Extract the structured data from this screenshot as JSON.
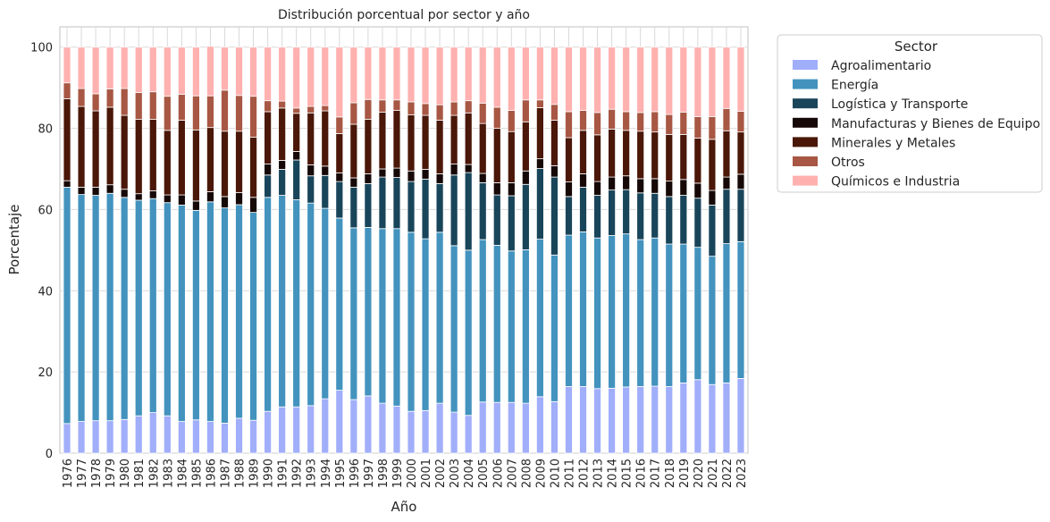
{
  "chart_data": {
    "type": "bar",
    "stacked": true,
    "title": "Distribución porcentual por sector y año",
    "xlabel": "Año",
    "ylabel": "Porcentaje",
    "ylim": [
      0,
      105
    ],
    "yticks": [
      0,
      20,
      40,
      60,
      80,
      100
    ],
    "grid": true,
    "legend_title": "Sector",
    "legend_position": "outside-top-right",
    "categories": [
      "1976",
      "1977",
      "1978",
      "1979",
      "1980",
      "1981",
      "1982",
      "1983",
      "1984",
      "1985",
      "1986",
      "1987",
      "1988",
      "1989",
      "1990",
      "1991",
      "1992",
      "1993",
      "1994",
      "1995",
      "1996",
      "1997",
      "1998",
      "1999",
      "2000",
      "2001",
      "2002",
      "2003",
      "2004",
      "2005",
      "2006",
      "2007",
      "2008",
      "2009",
      "2010",
      "2011",
      "2012",
      "2013",
      "2014",
      "2015",
      "2016",
      "2017",
      "2018",
      "2019",
      "2020",
      "2021",
      "2022",
      "2023"
    ],
    "series": [
      {
        "name": "Agroalimentario",
        "color": "#a1aefa",
        "values": [
          7.3,
          7.8,
          8.0,
          8.0,
          8.3,
          9.2,
          10.0,
          9.2,
          7.8,
          8.2,
          7.8,
          7.4,
          8.6,
          8.1,
          10.3,
          11.4,
          11.4,
          11.7,
          13.4,
          15.5,
          13.2,
          14.1,
          12.3,
          11.6,
          10.3,
          10.5,
          12.3,
          10.1,
          9.3,
          12.6,
          12.5,
          12.5,
          12.3,
          13.9,
          12.7,
          16.4,
          16.4,
          15.9,
          16.0,
          16.3,
          16.4,
          16.5,
          16.4,
          17.3,
          18.1,
          16.9,
          17.3,
          18.4
        ]
      },
      {
        "name": "Energía",
        "color": "#4393be",
        "values": [
          58.2,
          55.9,
          55.5,
          56.0,
          54.7,
          53.1,
          52.7,
          52.5,
          53.3,
          51.6,
          54.1,
          53.0,
          52.6,
          51.2,
          52.7,
          52.1,
          51.0,
          49.9,
          46.9,
          42.4,
          42.3,
          41.5,
          43.0,
          43.7,
          44.1,
          42.3,
          42.1,
          41.0,
          40.7,
          40.0,
          38.7,
          37.3,
          37.8,
          38.8,
          36.1,
          37.3,
          38.1,
          37.1,
          37.6,
          37.7,
          36.2,
          36.5,
          35.1,
          34.2,
          32.6,
          31.6,
          34.3,
          33.7
        ]
      },
      {
        "name": "Logística y Transporte",
        "color": "#19455a",
        "values": [
          0,
          0,
          0,
          0,
          0,
          0,
          0,
          0,
          0,
          0,
          0,
          0,
          0,
          0,
          5.5,
          6.4,
          9.8,
          6.7,
          8.1,
          9.0,
          10.0,
          10.8,
          12.7,
          12.6,
          12.5,
          14.7,
          12.0,
          17.4,
          19.1,
          14.0,
          12.4,
          13.6,
          16.1,
          17.4,
          19.2,
          9.5,
          11.0,
          10.5,
          11.2,
          10.9,
          11.5,
          11.0,
          11.7,
          12.0,
          12.1,
          12.6,
          13.4,
          12.9
        ]
      },
      {
        "name": "Manufacturas y Bienes de Equipo",
        "color": "#160807",
        "values": [
          1.6,
          1.8,
          2.0,
          2.1,
          2.0,
          1.6,
          1.9,
          1.9,
          2.5,
          2.3,
          2.5,
          2.8,
          3.0,
          3.7,
          2.7,
          2.2,
          2.1,
          2.7,
          2.3,
          2.1,
          2.3,
          2.4,
          2.0,
          2.3,
          2.6,
          2.4,
          2.4,
          2.7,
          2.0,
          2.3,
          3.0,
          3.2,
          3.3,
          2.4,
          2.8,
          3.6,
          3.3,
          3.4,
          3.2,
          3.4,
          3.5,
          3.6,
          3.8,
          3.9,
          3.7,
          3.6,
          3.0,
          3.7
        ]
      },
      {
        "name": "Minerales y Metales",
        "color": "#4a1708",
        "values": [
          20.2,
          19.9,
          18.8,
          19.1,
          18.2,
          18.3,
          17.6,
          15.9,
          18.4,
          17.5,
          15.8,
          16.1,
          15.1,
          14.8,
          12.9,
          12.9,
          9.4,
          12.8,
          13.6,
          9.7,
          13.2,
          13.4,
          14.0,
          14.2,
          13.8,
          13.3,
          13.2,
          12.0,
          12.7,
          12.3,
          13.4,
          12.6,
          12.1,
          12.6,
          11.2,
          10.9,
          10.7,
          11.5,
          11.8,
          11.2,
          11.7,
          11.5,
          11.5,
          11.1,
          11.1,
          12.6,
          11.4,
          10.4
        ]
      },
      {
        "name": "Otros",
        "color": "#a75743",
        "values": [
          3.9,
          4.4,
          4.2,
          4.5,
          6.6,
          6.6,
          6.8,
          8.4,
          6.4,
          8.4,
          7.8,
          10.1,
          8.8,
          10.1,
          2.7,
          1.7,
          1.3,
          1.6,
          1.3,
          4.1,
          5.3,
          4.9,
          3.0,
          2.6,
          3.2,
          2.9,
          3.8,
          3.3,
          3.0,
          5.0,
          5.2,
          5.2,
          5.4,
          1.9,
          3.9,
          6.4,
          4.9,
          5.5,
          4.9,
          4.6,
          4.6,
          5.0,
          4.9,
          5.5,
          5.3,
          5.6,
          5.5,
          5.1
        ]
      },
      {
        "name": "Químicos e Industria",
        "color": "#ffb1b0",
        "values": [
          8.8,
          10.2,
          11.5,
          10.3,
          10.2,
          11.2,
          11.0,
          12.1,
          11.6,
          12.0,
          12.2,
          10.6,
          11.9,
          12.1,
          13.2,
          13.3,
          15.0,
          14.6,
          14.4,
          17.2,
          13.7,
          12.9,
          13.0,
          13.0,
          13.5,
          13.9,
          14.2,
          13.5,
          13.2,
          13.8,
          14.8,
          15.6,
          13.0,
          13.0,
          14.1,
          15.9,
          15.6,
          16.1,
          15.3,
          15.9,
          16.1,
          15.9,
          16.6,
          16.0,
          17.1,
          17.1,
          15.1,
          15.8
        ]
      }
    ]
  }
}
